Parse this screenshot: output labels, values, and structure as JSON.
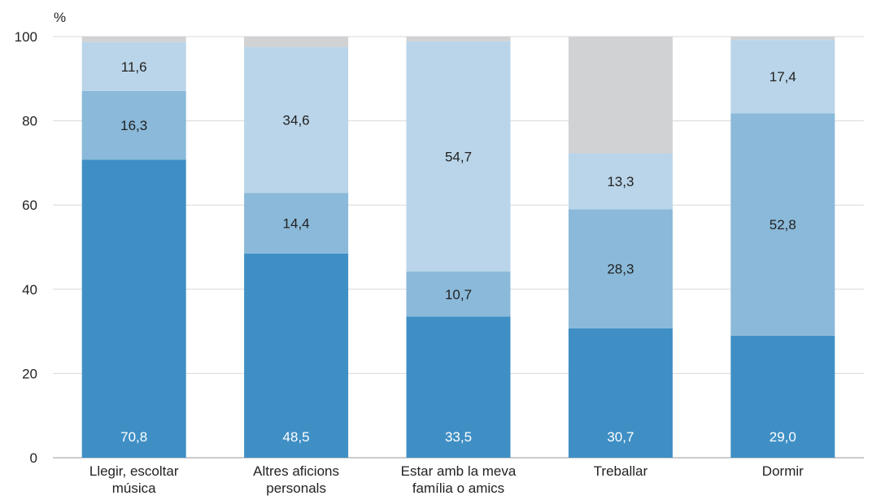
{
  "chart_data": {
    "type": "bar",
    "stacked": true,
    "orientation": "vertical",
    "unit_label": "%",
    "categories": [
      [
        "Llegir, escoltar",
        "música"
      ],
      [
        "Altres aficions",
        "personals"
      ],
      [
        "Estar amb la meva",
        "família o amics"
      ],
      [
        "Treballar"
      ],
      [
        "Dormir"
      ]
    ],
    "series": [
      {
        "values": [
          70.8,
          48.5,
          33.5,
          30.7,
          29.0
        ],
        "labels": [
          "70,8",
          "48,5",
          "33,5",
          "30,7",
          "29,0"
        ],
        "color": "#3f8fc5",
        "label_color": "#ffffff"
      },
      {
        "values": [
          16.3,
          14.4,
          10.7,
          28.3,
          52.8
        ],
        "labels": [
          "16,3",
          "14,4",
          "10,7",
          "28,3",
          "52,8"
        ],
        "color": "#8ab9d9",
        "label_color": "#222222"
      },
      {
        "values": [
          11.6,
          34.6,
          54.7,
          13.3,
          17.4
        ],
        "labels": [
          "11,6",
          "34,6",
          "54,7",
          "13,3",
          "17,4"
        ],
        "color": "#bad5e9",
        "label_color": "#222222"
      },
      {
        "values": [
          1.3,
          2.5,
          1.1,
          27.7,
          0.8
        ],
        "labels": [
          "",
          "",
          "",
          "",
          ""
        ],
        "color": "#d1d2d4",
        "label_color": "#222222"
      }
    ],
    "ylim": [
      0,
      100
    ],
    "yticks": [
      0,
      20,
      40,
      60,
      80,
      100
    ],
    "grid": true
  }
}
